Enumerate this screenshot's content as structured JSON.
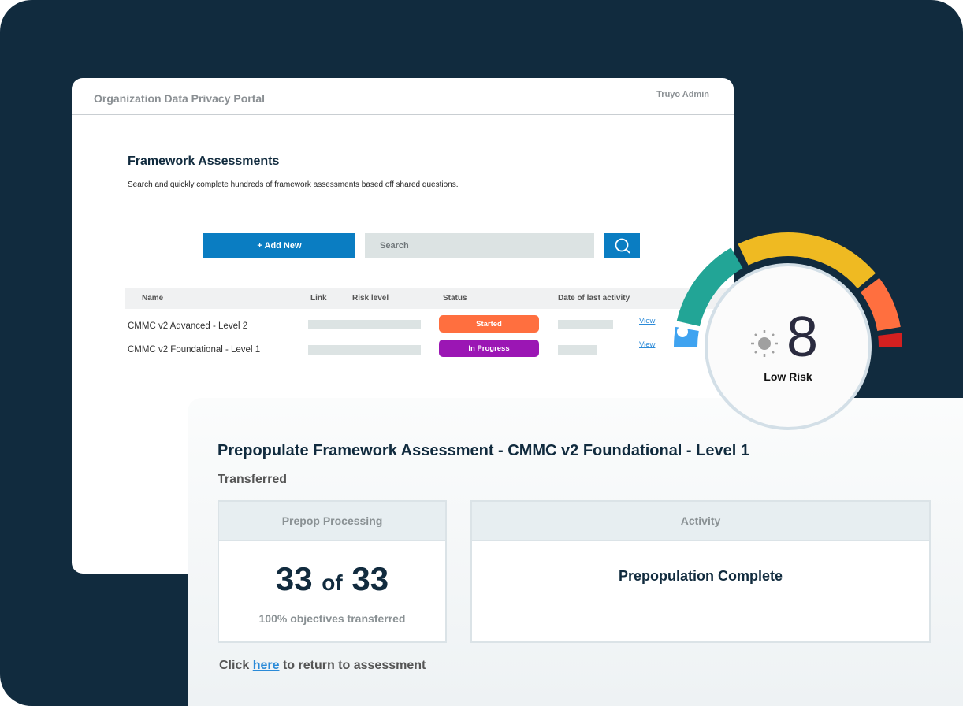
{
  "portal": {
    "title": "Organization Data Privacy Portal",
    "user": "Truyo Admin",
    "heading": "Framework Assessments",
    "subheading": "Search and quickly complete hundreds of framework assessments based off shared questions.",
    "add_label": "+ Add New",
    "search_placeholder": "Search",
    "columns": [
      "Name",
      "Link",
      "Risk level",
      "Status",
      "Date of last activity"
    ],
    "rows": [
      {
        "name": "CMMC v2 Advanced - Level 2",
        "status": "Started",
        "status_color": "#ff6f3f",
        "action": "View"
      },
      {
        "name": "CMMC v2 Foundational - Level 1",
        "status": "In Progress",
        "status_color": "#9b16b4",
        "action": "View"
      }
    ]
  },
  "gauge": {
    "score": "8",
    "label": "Low Risk",
    "colors": [
      "#3fa3f0",
      "#22a596",
      "#efba22",
      "#ff6f3f",
      "#d42020"
    ]
  },
  "card": {
    "title": "Prepopulate Framework Assessment - CMMC v2 Foundational - Level 1",
    "status": "Transferred",
    "processing_header": "Prepop Processing",
    "done": "33",
    "of": "of",
    "total": "33",
    "percent_text": "100% objectives transferred",
    "activity_header": "Activity",
    "activity_text": "Prepopulation Complete",
    "footer_pre": "Click",
    "footer_link": "here",
    "footer_post": "to return to assessment"
  }
}
